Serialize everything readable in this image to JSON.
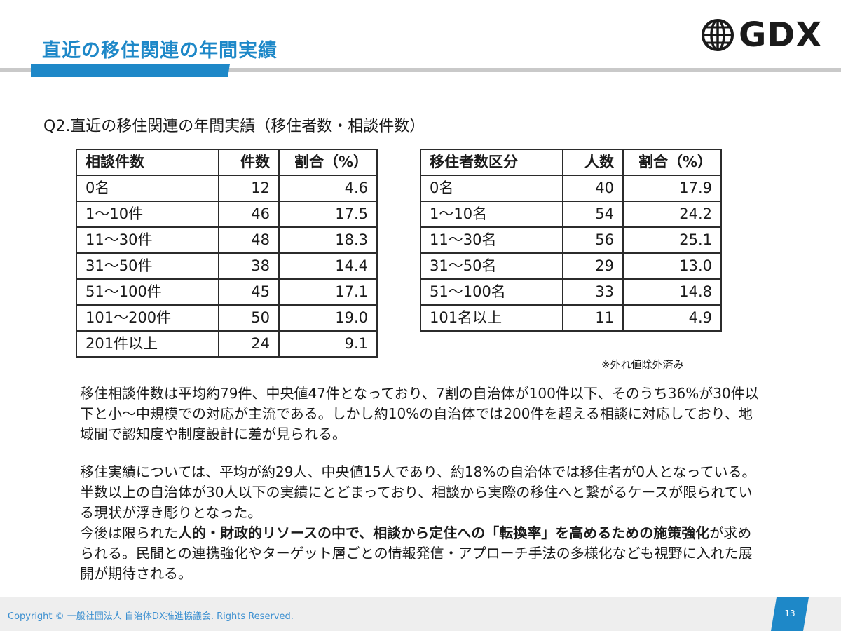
{
  "header": {
    "title": "直近の移住関連の年間実績",
    "logo_text": "GDX",
    "logo_icon": "globe-icon",
    "accent_color": "#1e88c8"
  },
  "subtitle": "Q2.直近の移住関連の年間実績（移住者数・相談件数）",
  "consult_table": {
    "headers": [
      "相談件数",
      "件数",
      "割合（%）"
    ],
    "rows": [
      [
        "0名",
        "12",
        "4.6"
      ],
      [
        "1～10件",
        "46",
        "17.5"
      ],
      [
        "11～30件",
        "48",
        "18.3"
      ],
      [
        "31～50件",
        "38",
        "14.4"
      ],
      [
        "51～100件",
        "45",
        "17.1"
      ],
      [
        "101～200件",
        "50",
        "19.0"
      ],
      [
        "201件以上",
        "24",
        "9.1"
      ]
    ]
  },
  "migrant_table": {
    "headers": [
      "移住者数区分",
      "人数",
      "割合（%）"
    ],
    "rows": [
      [
        "0名",
        "40",
        "17.9"
      ],
      [
        "1～10名",
        "54",
        "24.2"
      ],
      [
        "11～30名",
        "56",
        "25.1"
      ],
      [
        "31～50名",
        "29",
        "13.0"
      ],
      [
        "51～100名",
        "33",
        "14.8"
      ],
      [
        "101名以上",
        "11",
        "4.9"
      ]
    ]
  },
  "note": "※外れ値除外済み",
  "paragraph1": "移住相談件数は平均約79件、中央値47件となっており、7割の自治体が100件以下、そのうち36%が30件以下と小～中規模での対応が主流である。しかし約10%の自治体では200件を超える相談に対応しており、地域間で認知度や制度設計に差が見られる。",
  "paragraph2": {
    "line_a": "移住実績については、平均が約29人、中央値15人であり、約18%の自治体では移住者が0人となっている。半数以上の自治体が30人以下の実績にとどまっており、相談から実際の移住へと繋がるケースが限られている現状が浮き彫りとなった。",
    "seg1": "今後は限られた",
    "seg2_bold": "人的・財政的リソースの中で、相談から定住への「転換率」を高めるための施策強化",
    "seg3": "が求められる。民間との連携強化やターゲット層ごとの情報発信・アプローチ手法の多様化なども視野に入れた展開が期待される。"
  },
  "footer": {
    "copyright": "Copyright © 一般社団法人 自治体DX推進協議会. Rights Reserved.",
    "page_number": "13"
  }
}
